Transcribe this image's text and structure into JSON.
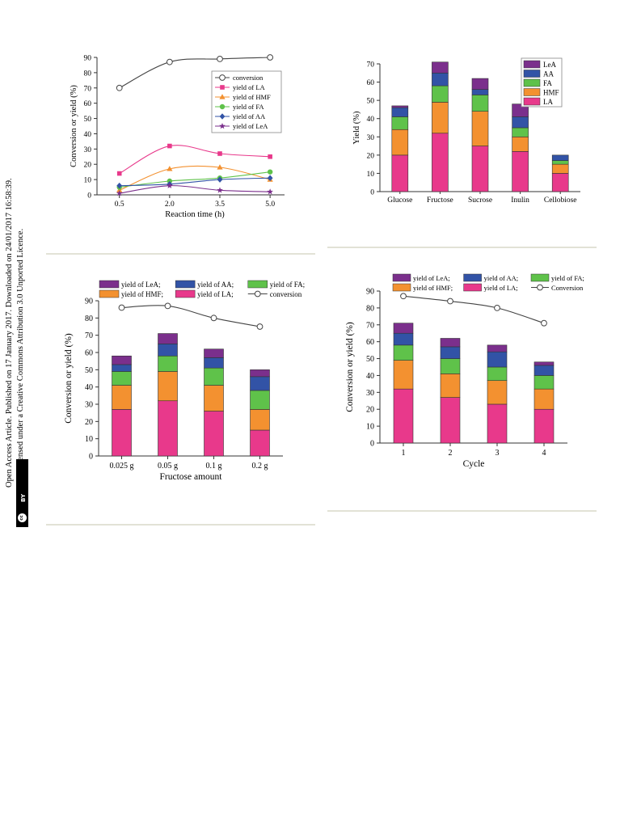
{
  "sidebar": {
    "line1": "Open Access Article. Published on 17 January 2017. Downloaded on 24/01/2017 16:58:39.",
    "line2": "This article is licensed under a Creative Commons Attribution 3.0 Unported Licence.",
    "badge_cc": "cc",
    "badge_by": "BY"
  },
  "colors": {
    "conversion": "#444444",
    "LA": "#e8398b",
    "HMF": "#f39130",
    "FA": "#5fc24a",
    "AA": "#3253a6",
    "LeA": "#7b2f8c",
    "axis": "#333333",
    "divider": "#d8d8c8"
  },
  "chart_data": [
    {
      "type": "line",
      "x": [
        0.5,
        2.0,
        3.5,
        5.0
      ],
      "xticks": [
        "0.5",
        "2.0",
        "3.5",
        "5.0"
      ],
      "xlabel": "Reaction time (h)",
      "ylabel": "Conversion or yield (%)",
      "ylim": [
        0,
        90
      ],
      "yticks": [
        0,
        10,
        20,
        30,
        40,
        50,
        60,
        70,
        80,
        90
      ],
      "legend": "top-right",
      "series": [
        {
          "name": "conversion",
          "key": "conversion",
          "marker": "circle-open",
          "values": [
            70,
            87,
            89,
            90
          ]
        },
        {
          "name": "yield of LA",
          "key": "LA",
          "marker": "square",
          "values": [
            14,
            32,
            27,
            25
          ]
        },
        {
          "name": "yield of HMF",
          "key": "HMF",
          "marker": "triangle",
          "values": [
            3,
            17,
            18,
            10
          ]
        },
        {
          "name": "yield of FA",
          "key": "FA",
          "marker": "circle",
          "values": [
            5,
            9,
            11,
            15
          ]
        },
        {
          "name": "yield of AA",
          "key": "AA",
          "marker": "diamond",
          "values": [
            6,
            7,
            10,
            11
          ]
        },
        {
          "name": "yield of LeA",
          "key": "LeA",
          "marker": "star",
          "values": [
            1,
            6,
            3,
            2
          ]
        }
      ]
    },
    {
      "type": "bar",
      "stacked": true,
      "categories": [
        "Glucose",
        "Fructose",
        "Sucrose",
        "Inulin",
        "Cellobiose"
      ],
      "ylabel": "Yield (%)",
      "ylim": [
        0,
        70
      ],
      "yticks": [
        0,
        10,
        20,
        30,
        40,
        50,
        60,
        70
      ],
      "legend": "top-right",
      "legend_order": [
        "LeA",
        "AA",
        "FA",
        "HMF",
        "LA"
      ],
      "series": [
        {
          "name": "LA",
          "key": "LA",
          "values": [
            20,
            32,
            25,
            22,
            10
          ]
        },
        {
          "name": "HMF",
          "key": "HMF",
          "values": [
            14,
            17,
            19,
            8,
            5
          ]
        },
        {
          "name": "FA",
          "key": "FA",
          "values": [
            7,
            9,
            9,
            5,
            2
          ]
        },
        {
          "name": "AA",
          "key": "AA",
          "values": [
            5,
            7,
            3,
            6,
            3
          ]
        },
        {
          "name": "LeA",
          "key": "LeA",
          "values": [
            1,
            6,
            6,
            7,
            0
          ]
        }
      ]
    },
    {
      "type": "bar",
      "stacked": true,
      "categories": [
        "0.025 g",
        "0.05 g",
        "0.1 g",
        "0.2 g"
      ],
      "xlabel": "Fructose amount",
      "ylabel": "Conversion or yield (%)",
      "ylim": [
        0,
        90
      ],
      "yticks": [
        0,
        10,
        20,
        30,
        40,
        50,
        60,
        70,
        80,
        90
      ],
      "legend": "top",
      "legend_rows": [
        [
          "LeA",
          "AA",
          "FA"
        ],
        [
          "HMF",
          "LA",
          "conversion"
        ]
      ],
      "series": [
        {
          "name": "yield of LA;",
          "key": "LA",
          "values": [
            27,
            32,
            26,
            15
          ]
        },
        {
          "name": "yield of HMF;",
          "key": "HMF",
          "values": [
            14,
            17,
            15,
            12
          ]
        },
        {
          "name": "yield of FA;",
          "key": "FA",
          "values": [
            8,
            9,
            10,
            11
          ]
        },
        {
          "name": "yield of AA;",
          "key": "AA",
          "values": [
            4,
            7,
            6,
            8
          ]
        },
        {
          "name": "yield of LeA;",
          "key": "LeA",
          "values": [
            5,
            6,
            5,
            4
          ]
        }
      ],
      "line": {
        "name": "conversion",
        "key": "conversion",
        "values": [
          86,
          87,
          80,
          75
        ]
      }
    },
    {
      "type": "bar",
      "stacked": true,
      "categories": [
        "1",
        "2",
        "3",
        "4"
      ],
      "xlabel": "Cycle",
      "ylabel": "Conversion or yield (%)",
      "ylim": [
        0,
        90
      ],
      "yticks": [
        0,
        10,
        20,
        30,
        40,
        50,
        60,
        70,
        80,
        90
      ],
      "legend": "top",
      "legend_rows": [
        [
          "LeA",
          "AA",
          "FA"
        ],
        [
          "HMF",
          "LA",
          "conversion"
        ]
      ],
      "series": [
        {
          "name": "yield of LA;",
          "key": "LA",
          "values": [
            32,
            27,
            23,
            20
          ]
        },
        {
          "name": "yield of HMF;",
          "key": "HMF",
          "values": [
            17,
            14,
            14,
            12
          ]
        },
        {
          "name": "yield of FA;",
          "key": "FA",
          "values": [
            9,
            9,
            8,
            8
          ]
        },
        {
          "name": "yield of AA;",
          "key": "AA",
          "values": [
            7,
            7,
            9,
            6
          ]
        },
        {
          "name": "yield of LeA;",
          "key": "LeA",
          "values": [
            6,
            5,
            4,
            2
          ]
        }
      ],
      "line": {
        "name": "Conversion",
        "key": "conversion",
        "values": [
          87,
          84,
          80,
          71
        ]
      }
    }
  ]
}
